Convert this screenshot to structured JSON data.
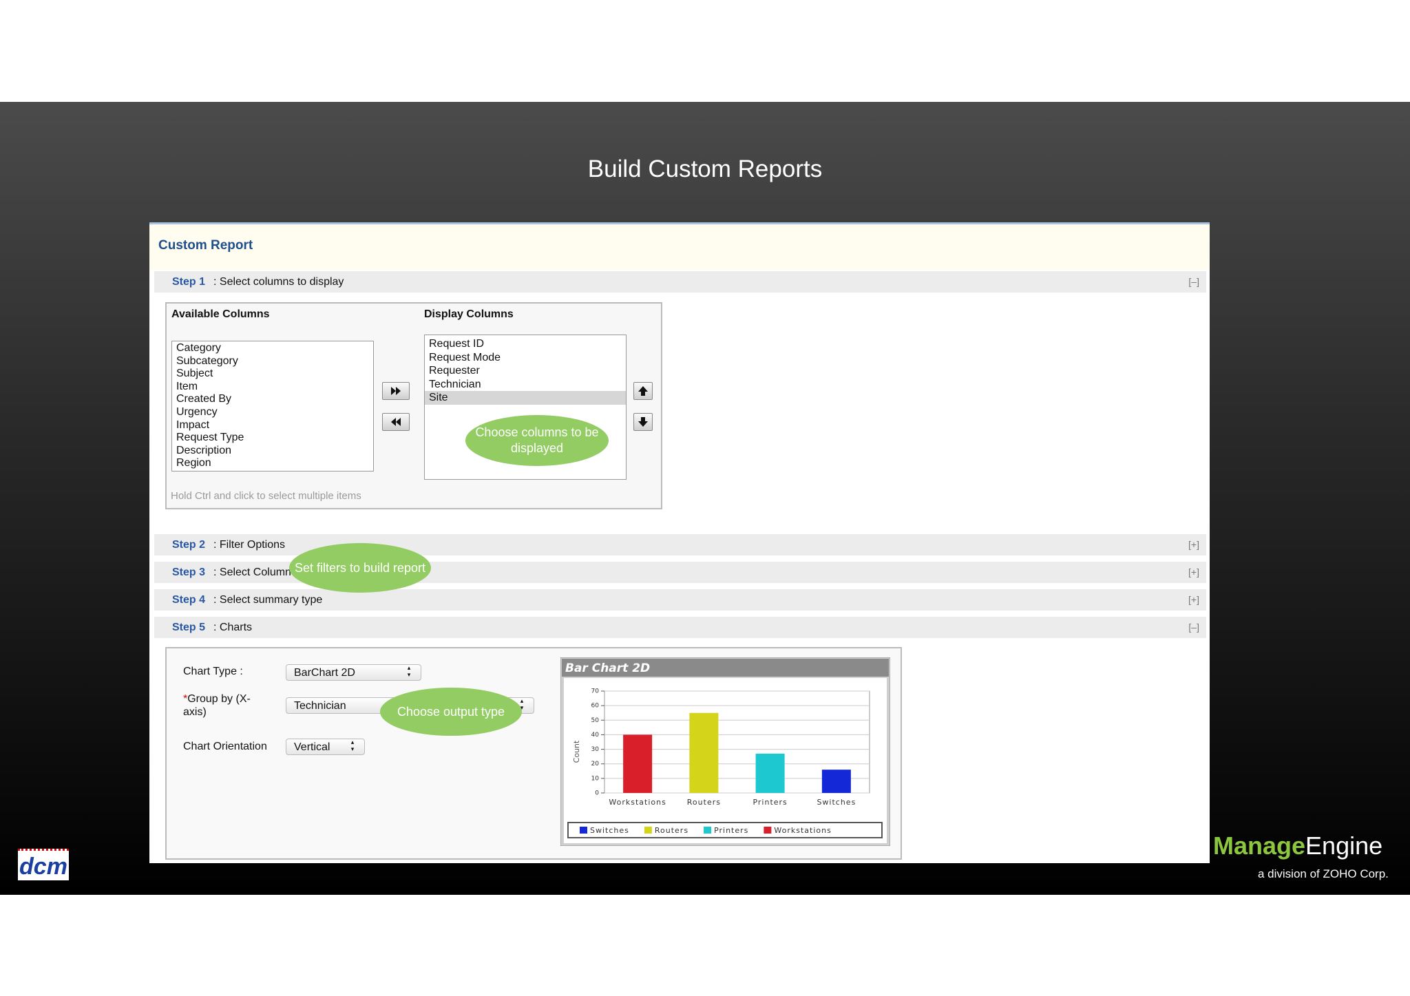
{
  "slide": {
    "title": "Build Custom Reports"
  },
  "panel": {
    "title": "Custom Report"
  },
  "steps": [
    {
      "label": "Step 1",
      "text": ": Select columns to display",
      "toggle": "[–]"
    },
    {
      "label": "Step 2",
      "text": ": Filter Options",
      "toggle": "[+]"
    },
    {
      "label": "Step 3",
      "text": ": Select Column",
      "toggle": "[+]"
    },
    {
      "label": "Step 4",
      "text": ": Select summary type",
      "toggle": "[+]"
    },
    {
      "label": "Step 5",
      "text": ": Charts",
      "toggle": "[–]"
    }
  ],
  "columns": {
    "available_title": "Available Columns",
    "available": [
      "Category",
      "Subcategory",
      "Subject",
      "Item",
      "Created By",
      "Urgency",
      "Impact",
      "Request Type",
      "Description",
      "Region"
    ],
    "display_title": "Display Columns",
    "display": [
      "Request ID",
      "Request Mode",
      "Requester",
      "Technician",
      "Site"
    ],
    "hint": "Hold Ctrl and click to select multiple items"
  },
  "callouts": [
    "Choose columns to be displayed",
    "Set filters to build report",
    "Choose output type"
  ],
  "chart_options": {
    "chart_type_label": "Chart Type :",
    "chart_type": "BarChart 2D",
    "required_mark": "*",
    "group_by_label": "Group by (X-axis)",
    "group_by": "Technician",
    "orientation_label": "Chart Orientation",
    "orientation": "Vertical"
  },
  "chart_data": {
    "type": "bar",
    "title": "Bar Chart 2D",
    "y_label": "Count",
    "categories": [
      "Workstations",
      "Routers",
      "Printers",
      "Switches"
    ],
    "values": [
      40,
      55,
      27,
      16
    ],
    "colors": [
      "#d81f2a",
      "#d4d41a",
      "#1ec8d0",
      "#1428d8"
    ],
    "ylim": [
      0,
      70
    ],
    "yticks": [
      0,
      10,
      20,
      30,
      40,
      50,
      60,
      70
    ],
    "grid": true,
    "legend": [
      {
        "name": "Switches",
        "color": "#1428d8"
      },
      {
        "name": "Routers",
        "color": "#d4d41a"
      },
      {
        "name": "Printers",
        "color": "#1ec8d0"
      },
      {
        "name": "Workstations",
        "color": "#d81f2a"
      }
    ]
  },
  "logos": {
    "left": "dcm",
    "brand_a": "Manage",
    "brand_b": "Engine",
    "tagline": "a division of ZOHO Corp."
  }
}
